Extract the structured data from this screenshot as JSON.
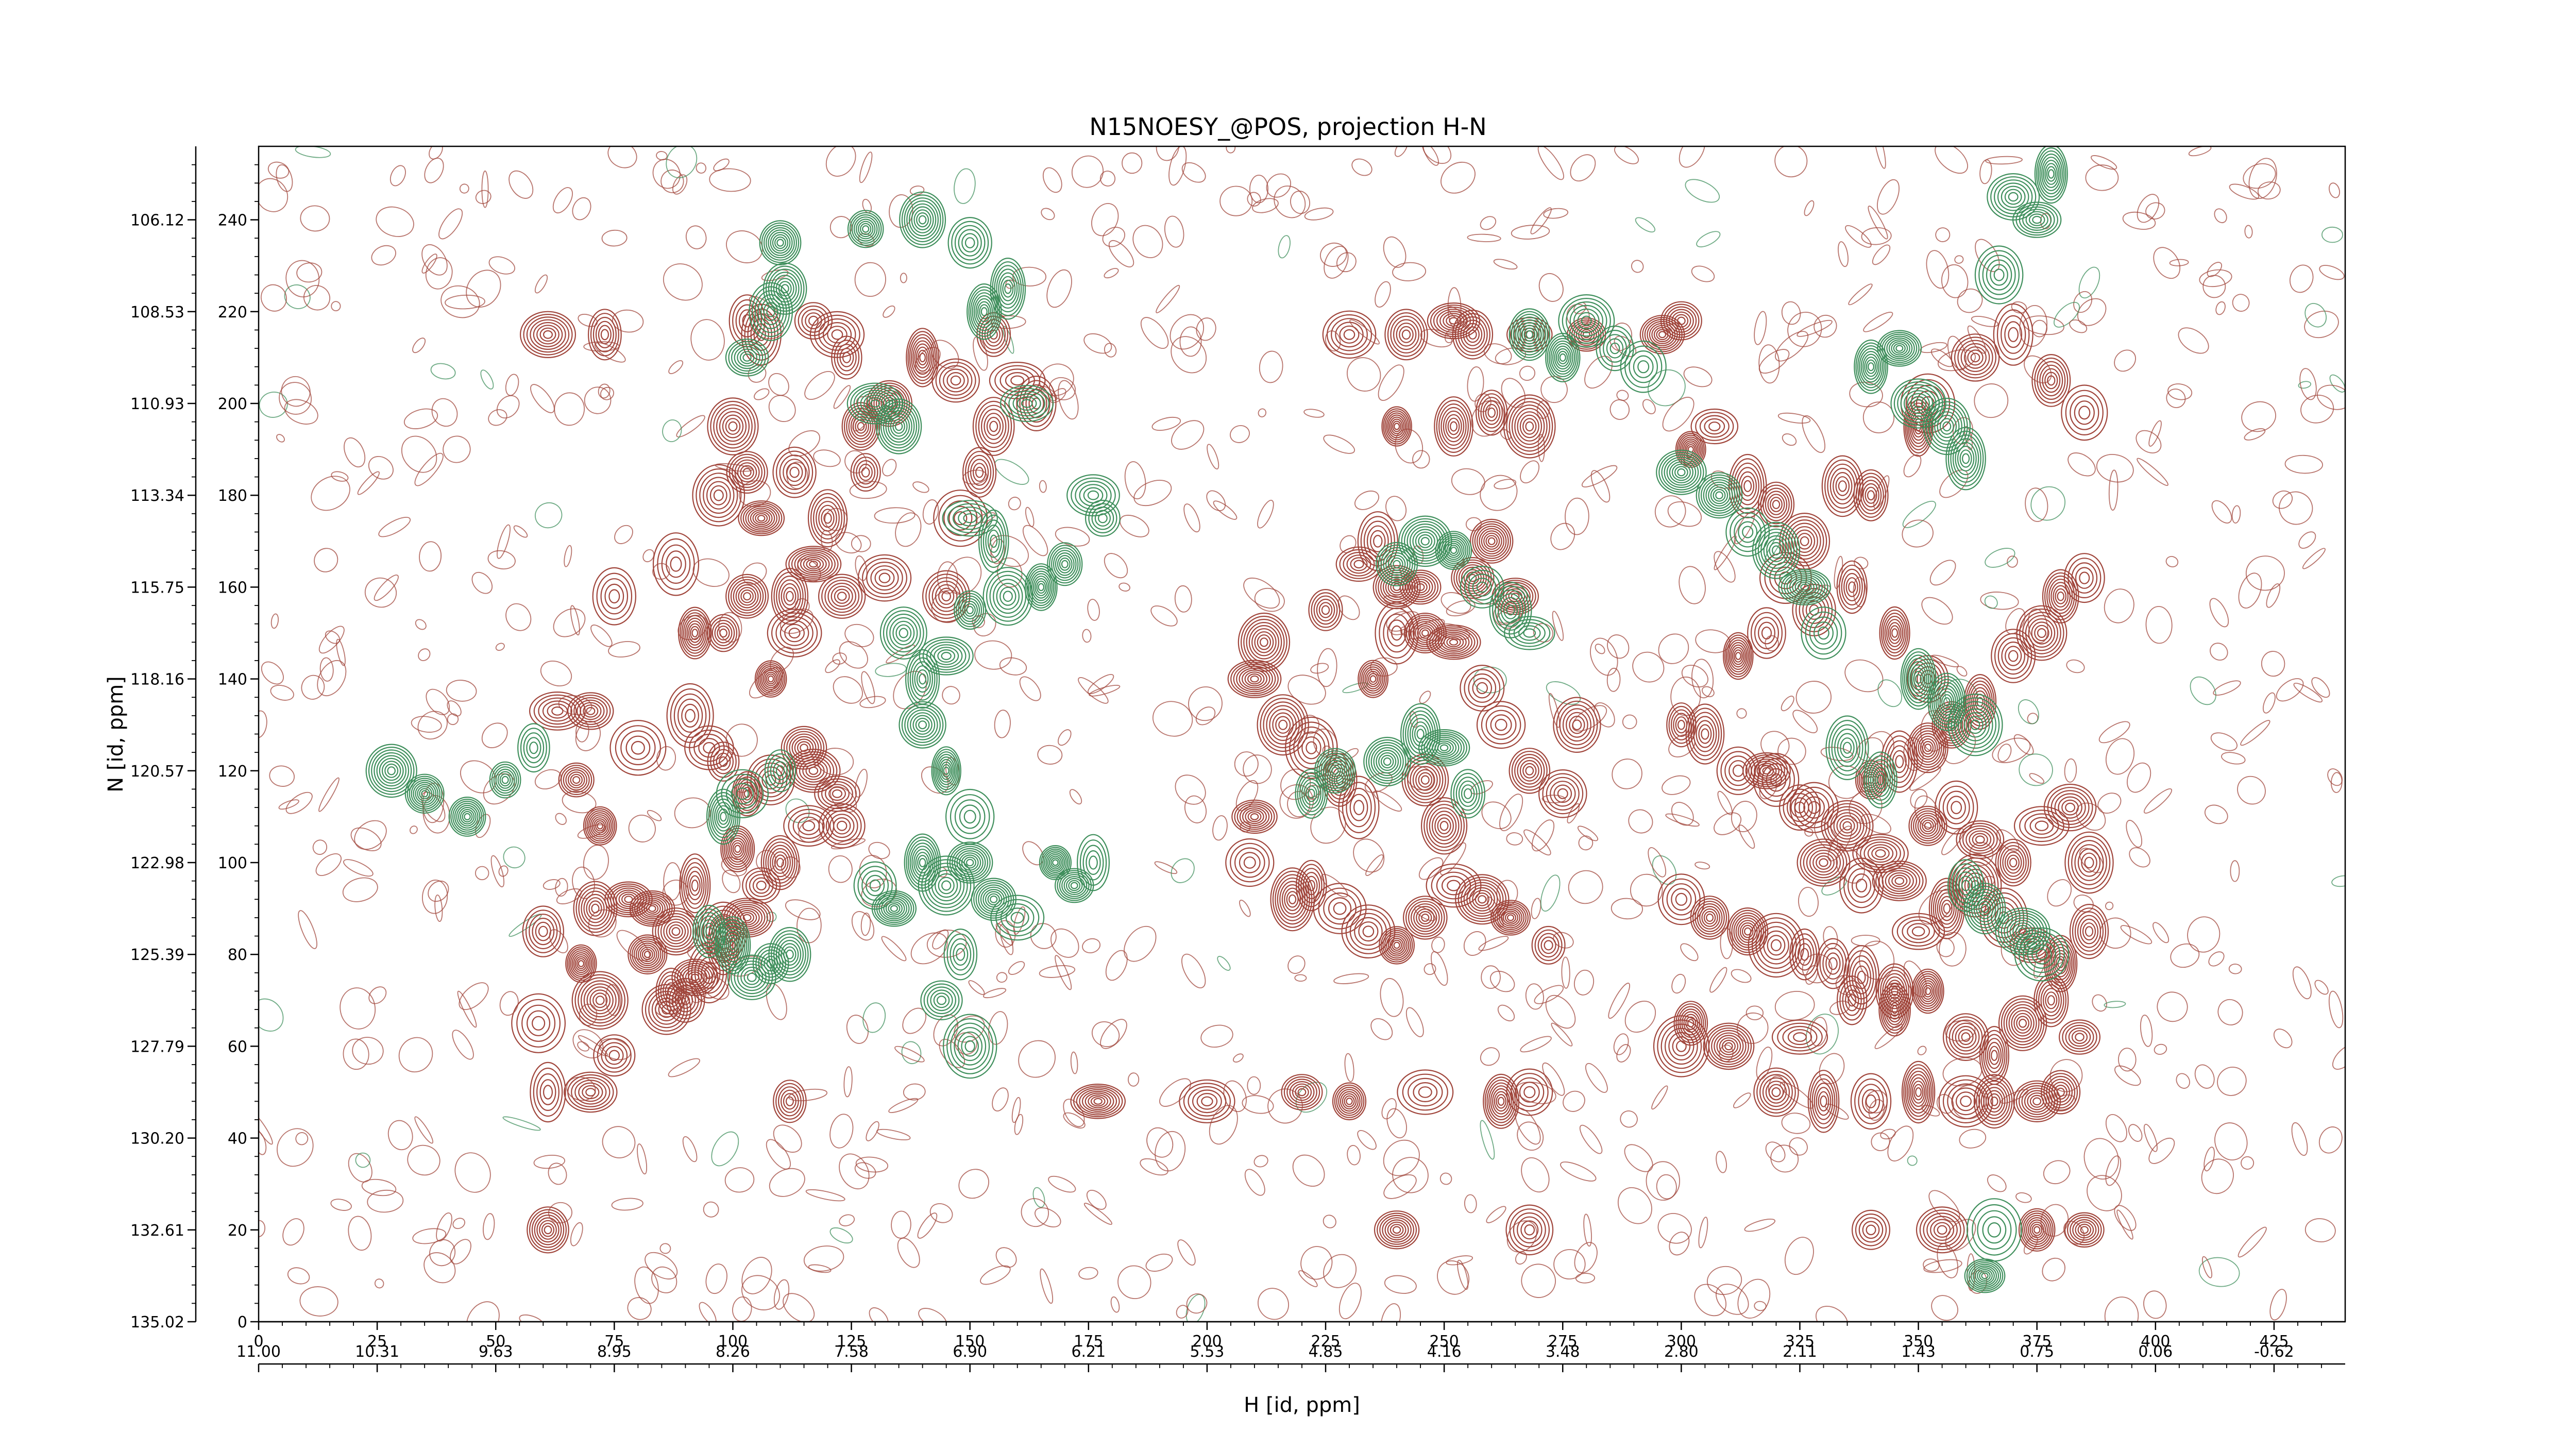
{
  "chart_data": {
    "type": "contour",
    "title": "N15NOESY_@POS, projection H-N",
    "xlabel": "H [id, ppm]",
    "ylabel": "N [id, ppm]",
    "x_index_ticks": [
      "0",
      "25",
      "50",
      "75",
      "100",
      "125",
      "150",
      "175",
      "200",
      "225",
      "250",
      "275",
      "300",
      "325",
      "350",
      "375",
      "400",
      "425"
    ],
    "x_ppm_ticks": [
      "11.00",
      "10.31",
      "9.63",
      "8.95",
      "8.26",
      "7.58",
      "6.90",
      "6.21",
      "5.53",
      "4.85",
      "4.16",
      "3.48",
      "2.80",
      "2.11",
      "1.43",
      "0.75",
      "0.06",
      "-0.62"
    ],
    "y_index_ticks": [
      "0",
      "20",
      "40",
      "60",
      "80",
      "100",
      "120",
      "140",
      "160",
      "180",
      "200",
      "220",
      "240"
    ],
    "y_ppm_ticks": [
      "135.02",
      "132.61",
      "130.20",
      "127.79",
      "125.39",
      "122.98",
      "120.57",
      "118.16",
      "115.75",
      "113.34",
      "110.93",
      "108.53",
      "106.12"
    ],
    "xlim_index": [
      0,
      440
    ],
    "ylim_index": [
      0,
      256
    ],
    "positive_color": "#a0453b",
    "negative_color": "#3f8f5c",
    "positive_peaks": [
      [
        61,
        215
      ],
      [
        73,
        215
      ],
      [
        103,
        218
      ],
      [
        106,
        215
      ],
      [
        117,
        218
      ],
      [
        122,
        215
      ],
      [
        124,
        210
      ],
      [
        100,
        195
      ],
      [
        97,
        180
      ],
      [
        103,
        185
      ],
      [
        106,
        175
      ],
      [
        113,
        185
      ],
      [
        120,
        175
      ],
      [
        127,
        195
      ],
      [
        133,
        200
      ],
      [
        128,
        185
      ],
      [
        148,
        175
      ],
      [
        152,
        185
      ],
      [
        155,
        195
      ],
      [
        160,
        205
      ],
      [
        164,
        200
      ],
      [
        155,
        215
      ],
      [
        147,
        205
      ],
      [
        140,
        210
      ],
      [
        75,
        158
      ],
      [
        88,
        165
      ],
      [
        92,
        150
      ],
      [
        98,
        150
      ],
      [
        103,
        158
      ],
      [
        108,
        140
      ],
      [
        113,
        150
      ],
      [
        112,
        158
      ],
      [
        117,
        165
      ],
      [
        123,
        158
      ],
      [
        132,
        162
      ],
      [
        145,
        158
      ],
      [
        63,
        133
      ],
      [
        70,
        133
      ],
      [
        80,
        125
      ],
      [
        91,
        132
      ],
      [
        95,
        125
      ],
      [
        98,
        122
      ],
      [
        103,
        115
      ],
      [
        108,
        118
      ],
      [
        115,
        125
      ],
      [
        117,
        120
      ],
      [
        122,
        115
      ],
      [
        123,
        108
      ],
      [
        116,
        108
      ],
      [
        110,
        100
      ],
      [
        106,
        95
      ],
      [
        103,
        88
      ],
      [
        98,
        82
      ],
      [
        92,
        75
      ],
      [
        86,
        68
      ],
      [
        67,
        118
      ],
      [
        72,
        108
      ],
      [
        78,
        92
      ],
      [
        83,
        90
      ],
      [
        88,
        85
      ],
      [
        92,
        95
      ],
      [
        101,
        103
      ],
      [
        60,
        85
      ],
      [
        68,
        78
      ],
      [
        71,
        90
      ],
      [
        72,
        70
      ],
      [
        75,
        58
      ],
      [
        82,
        80
      ],
      [
        87,
        72
      ],
      [
        90,
        70
      ],
      [
        95,
        76
      ],
      [
        98,
        85
      ],
      [
        59,
        65
      ],
      [
        61,
        50
      ],
      [
        70,
        50
      ],
      [
        112,
        48
      ],
      [
        177,
        48
      ],
      [
        200,
        48
      ],
      [
        220,
        50
      ],
      [
        230,
        48
      ],
      [
        246,
        50
      ],
      [
        262,
        48
      ],
      [
        268,
        50
      ],
      [
        61,
        20
      ],
      [
        240,
        20
      ],
      [
        268,
        20
      ],
      [
        340,
        20
      ],
      [
        355,
        20
      ],
      [
        375,
        20
      ],
      [
        385,
        20
      ],
      [
        209,
        100
      ],
      [
        210,
        110
      ],
      [
        218,
        92
      ],
      [
        222,
        95
      ],
      [
        228,
        90
      ],
      [
        234,
        85
      ],
      [
        240,
        82
      ],
      [
        246,
        88
      ],
      [
        252,
        95
      ],
      [
        258,
        92
      ],
      [
        264,
        88
      ],
      [
        272,
        82
      ],
      [
        232,
        112
      ],
      [
        246,
        118
      ],
      [
        250,
        108
      ],
      [
        210,
        140
      ],
      [
        212,
        148
      ],
      [
        216,
        130
      ],
      [
        222,
        125
      ],
      [
        228,
        118
      ],
      [
        235,
        140
      ],
      [
        240,
        150
      ],
      [
        245,
        160
      ],
      [
        252,
        148
      ],
      [
        258,
        138
      ],
      [
        262,
        130
      ],
      [
        268,
        120
      ],
      [
        275,
        115
      ],
      [
        278,
        130
      ],
      [
        225,
        155
      ],
      [
        232,
        165
      ],
      [
        236,
        170
      ],
      [
        240,
        160
      ],
      [
        246,
        150
      ],
      [
        256,
        162
      ],
      [
        260,
        170
      ],
      [
        265,
        158
      ],
      [
        230,
        215
      ],
      [
        242,
        215
      ],
      [
        252,
        218
      ],
      [
        256,
        215
      ],
      [
        268,
        215
      ],
      [
        280,
        215
      ],
      [
        296,
        215
      ],
      [
        300,
        218
      ],
      [
        240,
        195
      ],
      [
        252,
        195
      ],
      [
        260,
        198
      ],
      [
        268,
        195
      ],
      [
        302,
        190
      ],
      [
        307,
        195
      ],
      [
        314,
        182
      ],
      [
        320,
        178
      ],
      [
        326,
        170
      ],
      [
        334,
        182
      ],
      [
        340,
        180
      ],
      [
        350,
        195
      ],
      [
        352,
        200
      ],
      [
        362,
        210
      ],
      [
        370,
        215
      ],
      [
        378,
        205
      ],
      [
        385,
        198
      ],
      [
        312,
        145
      ],
      [
        318,
        150
      ],
      [
        322,
        162
      ],
      [
        328,
        155
      ],
      [
        336,
        160
      ],
      [
        345,
        150
      ],
      [
        352,
        140
      ],
      [
        357,
        130
      ],
      [
        363,
        135
      ],
      [
        370,
        145
      ],
      [
        376,
        150
      ],
      [
        380,
        158
      ],
      [
        385,
        162
      ],
      [
        300,
        130
      ],
      [
        305,
        128
      ],
      [
        312,
        120
      ],
      [
        320,
        118
      ],
      [
        328,
        112
      ],
      [
        335,
        108
      ],
      [
        340,
        118
      ],
      [
        346,
        122
      ],
      [
        352,
        125
      ],
      [
        358,
        112
      ],
      [
        363,
        105
      ],
      [
        370,
        100
      ],
      [
        376,
        108
      ],
      [
        382,
        112
      ],
      [
        386,
        100
      ],
      [
        300,
        92
      ],
      [
        306,
        88
      ],
      [
        314,
        85
      ],
      [
        320,
        82
      ],
      [
        326,
        80
      ],
      [
        332,
        78
      ],
      [
        338,
        75
      ],
      [
        345,
        72
      ],
      [
        350,
        85
      ],
      [
        356,
        90
      ],
      [
        362,
        95
      ],
      [
        368,
        88
      ],
      [
        374,
        82
      ],
      [
        380,
        78
      ],
      [
        386,
        85
      ],
      [
        302,
        65
      ],
      [
        310,
        60
      ],
      [
        325,
        62
      ],
      [
        336,
        70
      ],
      [
        345,
        68
      ],
      [
        352,
        72
      ],
      [
        360,
        62
      ],
      [
        366,
        58
      ],
      [
        372,
        65
      ],
      [
        378,
        70
      ],
      [
        384,
        62
      ],
      [
        318,
        120
      ],
      [
        325,
        112
      ],
      [
        330,
        100
      ],
      [
        338,
        95
      ],
      [
        342,
        102
      ],
      [
        346,
        96
      ],
      [
        352,
        108
      ],
      [
        300,
        60
      ],
      [
        320,
        50
      ],
      [
        330,
        48
      ],
      [
        340,
        48
      ],
      [
        350,
        50
      ],
      [
        360,
        48
      ],
      [
        366,
        48
      ],
      [
        375,
        48
      ],
      [
        380,
        50
      ]
    ],
    "negative_peaks": [
      [
        103,
        210
      ],
      [
        108,
        220
      ],
      [
        111,
        225
      ],
      [
        130,
        200
      ],
      [
        135,
        195
      ],
      [
        153,
        220
      ],
      [
        158,
        225
      ],
      [
        162,
        200
      ],
      [
        150,
        175
      ],
      [
        155,
        170
      ],
      [
        102,
        115
      ],
      [
        98,
        110
      ],
      [
        110,
        120
      ],
      [
        108,
        78
      ],
      [
        112,
        80
      ],
      [
        95,
        85
      ],
      [
        100,
        82
      ],
      [
        104,
        75
      ],
      [
        130,
        95
      ],
      [
        134,
        90
      ],
      [
        140,
        100
      ],
      [
        145,
        95
      ],
      [
        150,
        100
      ],
      [
        155,
        92
      ],
      [
        160,
        88
      ],
      [
        168,
        100
      ],
      [
        176,
        100
      ],
      [
        172,
        95
      ],
      [
        136,
        150
      ],
      [
        140,
        140
      ],
      [
        145,
        145
      ],
      [
        150,
        155
      ],
      [
        158,
        158
      ],
      [
        165,
        160
      ],
      [
        170,
        165
      ],
      [
        140,
        130
      ],
      [
        145,
        120
      ],
      [
        150,
        110
      ],
      [
        148,
        80
      ],
      [
        144,
        70
      ],
      [
        150,
        60
      ],
      [
        176,
        180
      ],
      [
        178,
        175
      ],
      [
        222,
        115
      ],
      [
        227,
        120
      ],
      [
        238,
        122
      ],
      [
        245,
        128
      ],
      [
        250,
        125
      ],
      [
        255,
        115
      ],
      [
        240,
        165
      ],
      [
        246,
        170
      ],
      [
        252,
        168
      ],
      [
        258,
        160
      ],
      [
        264,
        155
      ],
      [
        268,
        150
      ],
      [
        268,
        215
      ],
      [
        275,
        210
      ],
      [
        280,
        218
      ],
      [
        286,
        212
      ],
      [
        292,
        208
      ],
      [
        300,
        185
      ],
      [
        308,
        180
      ],
      [
        314,
        172
      ],
      [
        320,
        168
      ],
      [
        326,
        160
      ],
      [
        330,
        150
      ],
      [
        340,
        208
      ],
      [
        346,
        212
      ],
      [
        350,
        200
      ],
      [
        356,
        195
      ],
      [
        360,
        188
      ],
      [
        360,
        95
      ],
      [
        364,
        90
      ],
      [
        372,
        85
      ],
      [
        376,
        80
      ],
      [
        366,
        20
      ],
      [
        364,
        10
      ],
      [
        367,
        228
      ],
      [
        370,
        245
      ],
      [
        375,
        240
      ],
      [
        378,
        250
      ],
      [
        128,
        238
      ],
      [
        140,
        240
      ],
      [
        150,
        235
      ],
      [
        110,
        235
      ],
      [
        350,
        140
      ],
      [
        356,
        135
      ],
      [
        362,
        130
      ],
      [
        342,
        118
      ],
      [
        335,
        125
      ],
      [
        28,
        120
      ],
      [
        35,
        115
      ],
      [
        44,
        110
      ],
      [
        52,
        118
      ],
      [
        58,
        125
      ]
    ]
  }
}
